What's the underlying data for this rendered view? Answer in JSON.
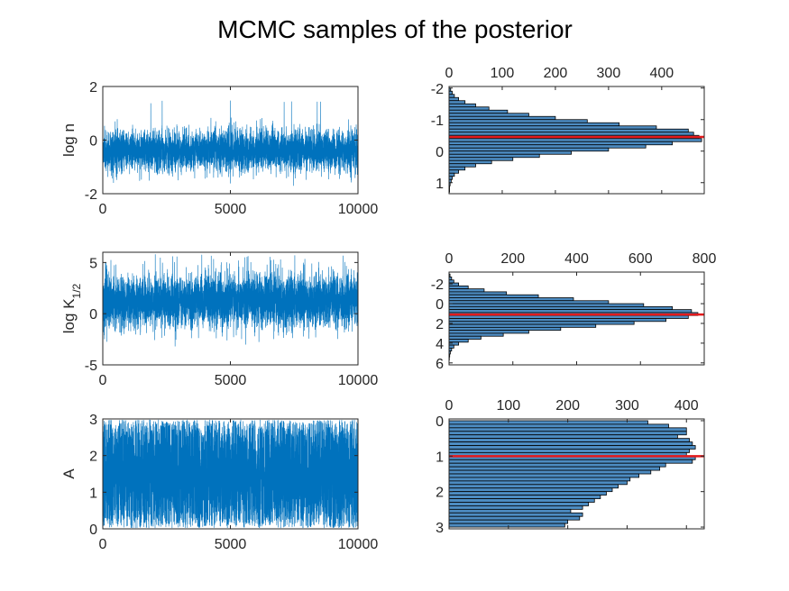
{
  "title": "MCMC samples of the posterior",
  "colors": {
    "trace": "#0072BD",
    "hist_fill": "#4D8CC2",
    "hist_edge": "#000000",
    "marker": "#E41A1C",
    "axis": "#262626"
  },
  "chart_data": [
    {
      "type": "line",
      "ylabel": "log n",
      "x_range": [
        0,
        10000
      ],
      "ylim": [
        -2,
        2
      ],
      "x_ticks": [
        "0",
        "5000",
        "10000"
      ],
      "y_ticks": [
        "-2",
        "0",
        "2"
      ],
      "n_samples": 10000,
      "trace_center": -0.4,
      "trace_spread": 0.38,
      "trace_min": -1.8,
      "trace_max": 1.5
    },
    {
      "type": "bar",
      "orientation": "horizontal",
      "x_range": [
        0,
        480
      ],
      "x_ticks": [
        "0",
        "100",
        "200",
        "300",
        "400"
      ],
      "y_range": [
        -2.05,
        1.35
      ],
      "y_ticks": [
        "-2",
        "-1",
        "0",
        "1"
      ],
      "y_tick_values": [
        -2,
        -1,
        0,
        1
      ],
      "y_reversed": true,
      "bin_start": -2.0,
      "bin_width": 0.1,
      "counts": [
        3,
        6,
        10,
        18,
        30,
        50,
        75,
        110,
        150,
        200,
        260,
        320,
        390,
        450,
        460,
        470,
        475,
        420,
        370,
        300,
        230,
        170,
        120,
        80,
        50,
        30,
        18,
        10,
        6,
        4,
        2,
        1,
        1
      ],
      "marker_value": -0.45
    },
    {
      "type": "line",
      "ylabel": "log K",
      "ylabel_sub": "1/2",
      "x_range": [
        0,
        10000
      ],
      "ylim": [
        -5,
        6
      ],
      "x_ticks": [
        "0",
        "5000",
        "10000"
      ],
      "y_ticks": [
        "-5",
        "0",
        "5"
      ],
      "n_samples": 10000,
      "trace_center": 1.2,
      "trace_spread": 1.3,
      "trace_min": -3.2,
      "trace_max": 5.8
    },
    {
      "type": "bar",
      "orientation": "horizontal",
      "x_range": [
        0,
        800
      ],
      "x_ticks": [
        "0",
        "200",
        "400",
        "600",
        "800"
      ],
      "y_range": [
        -3.2,
        6.2
      ],
      "y_ticks": [
        "-2",
        "0",
        "2",
        "4",
        "6"
      ],
      "y_tick_values": [
        -2,
        0,
        2,
        4,
        6
      ],
      "y_reversed": true,
      "bin_start": -3.0,
      "bin_width": 0.3,
      "counts": [
        3,
        8,
        15,
        30,
        60,
        110,
        180,
        280,
        390,
        500,
        610,
        700,
        760,
        780,
        750,
        680,
        580,
        460,
        350,
        250,
        170,
        100,
        60,
        30,
        15,
        8,
        4,
        2,
        1
      ],
      "marker_value": 1.1
    },
    {
      "type": "line",
      "ylabel": "A",
      "x_range": [
        0,
        10000
      ],
      "ylim": [
        0,
        3
      ],
      "x_ticks": [
        "0",
        "5000",
        "10000"
      ],
      "y_ticks": [
        "0",
        "1",
        "2",
        "3"
      ],
      "n_samples": 10000,
      "trace_center": 1.5,
      "trace_spread": 0.85,
      "trace_min": 0.02,
      "trace_max": 2.98,
      "trace_uniform": true
    },
    {
      "type": "bar",
      "orientation": "horizontal",
      "x_range": [
        0,
        430
      ],
      "x_ticks": [
        "0",
        "100",
        "200",
        "300",
        "400"
      ],
      "y_range": [
        -0.05,
        3.05
      ],
      "y_ticks": [
        "0",
        "1",
        "2",
        "3"
      ],
      "y_tick_values": [
        0,
        1,
        2,
        3
      ],
      "y_reversed": true,
      "bin_start": 0.0,
      "bin_width": 0.1,
      "counts": [
        335,
        370,
        400,
        400,
        385,
        405,
        410,
        415,
        405,
        400,
        415,
        410,
        365,
        355,
        340,
        320,
        305,
        300,
        285,
        275,
        265,
        255,
        245,
        235,
        225,
        205,
        225,
        220,
        200,
        195
      ],
      "marker_value": 1.0
    }
  ]
}
